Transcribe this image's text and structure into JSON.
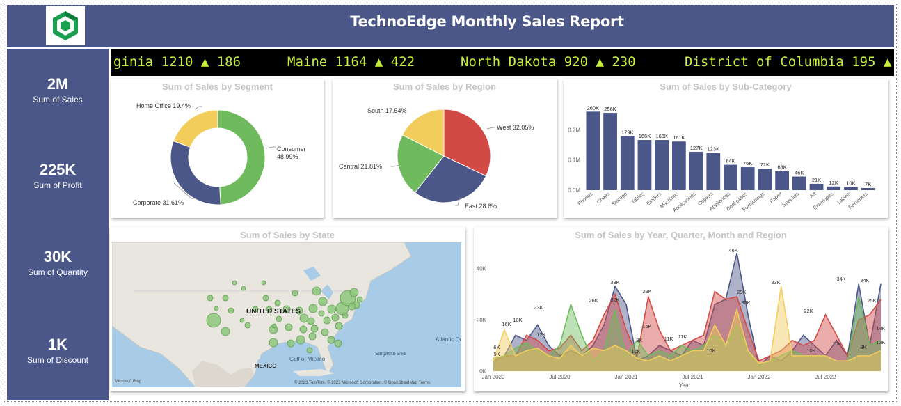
{
  "header": {
    "title": "TechnoEdge Monthly Sales Report"
  },
  "kpis": [
    {
      "value": "2M",
      "label": "Sum of Sales"
    },
    {
      "value": "225K",
      "label": "Sum of Profit"
    },
    {
      "value": "30K",
      "label": "Sum of Quantity"
    },
    {
      "value": "1K",
      "label": "Sum of Discount"
    }
  ],
  "ticker": [
    "ginia 1210 ▲ 186",
    "Maine 1164 ▲ 422",
    "North Dakota 920 ▲ 230",
    "District of Columbia 195 ▲"
  ],
  "colors": {
    "navy": "#4b5789",
    "green": "#6fba5d",
    "yellow": "#f2cd5c",
    "red": "#d34a45",
    "ticker_text": "#c8f03a"
  },
  "segment": {
    "title": "Sum of Sales by Segment",
    "labels": [
      "Consumer",
      "48.99%",
      "Corporate 31.61%",
      "Home Office 19.4%"
    ]
  },
  "region": {
    "title": "Sum of Sales by Region",
    "labels": [
      "West 32.05%",
      "East 28.6%",
      "Central 21.81%",
      "South 17.54%"
    ]
  },
  "subcat": {
    "title": "Sum of Sales by Sub-Category"
  },
  "state_map": {
    "title": "Sum of Sales by State",
    "labels": {
      "us": "UNITED STATES",
      "mexico": "MEXICO",
      "gulf": "Gulf of Mexico",
      "atlantic": "Atlantic Ocean",
      "sargasso": "Sargasso Sea"
    },
    "credit": "© 2023 TomTom, © 2023 Microsoft Corporation, © OpenStreetMap Terms",
    "brand": "Microsoft Bing"
  },
  "area": {
    "title": "Sum of Sales by Year, Quarter, Month and Region"
  },
  "chart_data": [
    {
      "type": "pie",
      "title": "Sum of Sales by Segment",
      "donut": true,
      "slices": [
        {
          "name": "Consumer",
          "value": 48.99,
          "color": "#6fba5d"
        },
        {
          "name": "Corporate",
          "value": 31.61,
          "color": "#4b5789"
        },
        {
          "name": "Home Office",
          "value": 19.4,
          "color": "#f2cd5c"
        }
      ]
    },
    {
      "type": "pie",
      "title": "Sum of Sales by Region",
      "slices": [
        {
          "name": "West",
          "value": 32.05,
          "color": "#d34a45"
        },
        {
          "name": "East",
          "value": 28.6,
          "color": "#4b5789"
        },
        {
          "name": "Central",
          "value": 21.81,
          "color": "#6fba5d"
        },
        {
          "name": "South",
          "value": 17.54,
          "color": "#f2cd5c"
        }
      ]
    },
    {
      "type": "bar",
      "title": "Sum of Sales by Sub-Category",
      "categories": [
        "Phones",
        "Chairs",
        "Storage",
        "Tables",
        "Binders",
        "Machines",
        "Accessories",
        "Copiers",
        "Appliances",
        "Bookcases",
        "Furnishings",
        "Paper",
        "Supplies",
        "Art",
        "Envelopes",
        "Labels",
        "Fasteners"
      ],
      "values": [
        260,
        256,
        179,
        166,
        166,
        161,
        127,
        123,
        84,
        76,
        71,
        63,
        45,
        21,
        12,
        10,
        7
      ],
      "value_labels": [
        "260K",
        "256K",
        "179K",
        "166K",
        "166K",
        "161K",
        "127K",
        "123K",
        "84K",
        "76K",
        "71K",
        "63K",
        "45K",
        "21K",
        "12K",
        "10K",
        "7K"
      ],
      "yticks": [
        "0.0M",
        "0.1M",
        "0.2M"
      ],
      "ylim": [
        0,
        300
      ]
    },
    {
      "type": "area",
      "title": "Sum of Sales by Year, Quarter, Month and Region",
      "xlabel": "Year",
      "xticks": [
        "Jan 2020",
        "Jul 2020",
        "Jan 2021",
        "Jul 2021",
        "Jan 2022",
        "Jul 2022"
      ],
      "yticks": [
        "0K",
        "20K",
        "40K"
      ],
      "ylim": [
        0,
        48
      ],
      "series": [
        {
          "color": "#4b5789",
          "values": [
            4,
            6,
            14,
            12,
            18,
            10,
            6,
            8,
            6,
            10,
            18,
            33,
            26,
            4,
            6,
            10,
            8,
            6,
            12,
            10,
            26,
            28,
            46,
            22,
            2,
            6,
            4,
            8,
            14,
            10,
            6,
            12,
            6,
            34,
            10,
            34
          ]
        },
        {
          "color": "#d34a45",
          "values": [
            4,
            6,
            6,
            14,
            12,
            8,
            9,
            14,
            8,
            12,
            22,
            30,
            16,
            6,
            29,
            16,
            8,
            10,
            12,
            14,
            31,
            28,
            29,
            16,
            4,
            6,
            8,
            12,
            10,
            12,
            22,
            14,
            6,
            20,
            22,
            28
          ]
        },
        {
          "color": "#6fba5d",
          "values": [
            5,
            6,
            9,
            11,
            8,
            6,
            10,
            26,
            14,
            4,
            8,
            24,
            6,
            12,
            6,
            8,
            6,
            10,
            8,
            10,
            14,
            10,
            18,
            8,
            2,
            4,
            6,
            8,
            6,
            6,
            6,
            4,
            4,
            29,
            10,
            12
          ]
        },
        {
          "color": "#f2cd5c",
          "values": [
            4,
            16,
            6,
            8,
            9,
            6,
            5,
            10,
            6,
            9,
            8,
            10,
            8,
            5,
            4,
            6,
            4,
            6,
            8,
            8,
            18,
            10,
            24,
            8,
            3,
            4,
            33,
            6,
            6,
            6,
            6,
            4,
            4,
            6,
            6,
            8
          ]
        }
      ],
      "point_labels": [
        "6K",
        "5K",
        "16K",
        "18K",
        "12K",
        "23K",
        "33K",
        "32K",
        "26K",
        "29K",
        "16K",
        "11K",
        "46K",
        "29K",
        "30K",
        "33K",
        "10K",
        "22K",
        "34K",
        "34K",
        "25K",
        "10K",
        "9K",
        "11K",
        "10K",
        "8K",
        "13K",
        "14K",
        "10K"
      ]
    }
  ]
}
